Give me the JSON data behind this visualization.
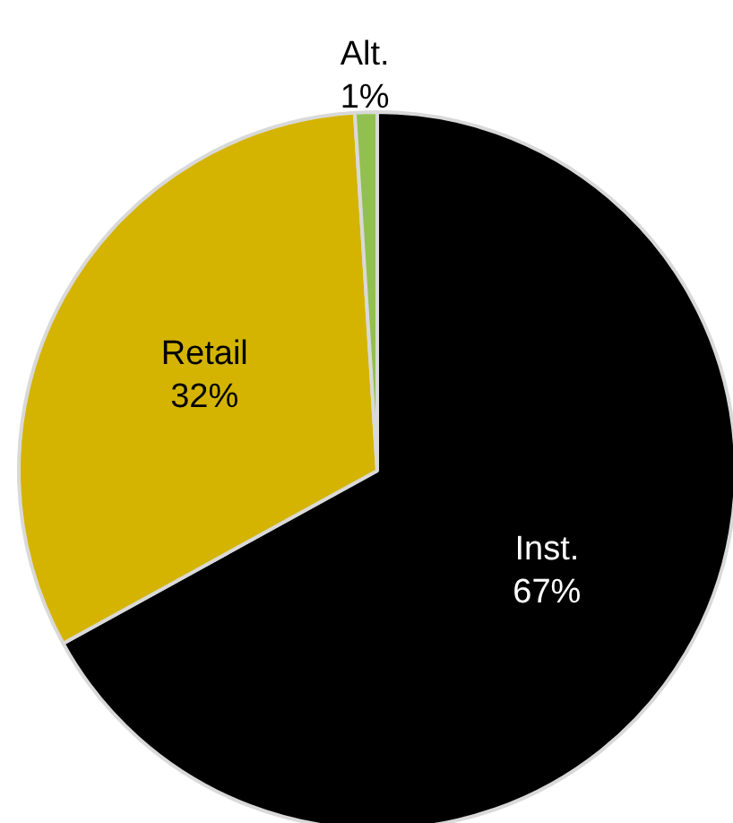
{
  "chart_data": {
    "type": "pie",
    "categories": [
      "Inst.",
      "Retail",
      "Alt."
    ],
    "values": [
      67,
      32,
      1
    ],
    "value_labels": [
      "67%",
      "32%",
      "1%"
    ],
    "colors": [
      "#000000",
      "#d4b400",
      "#92c050"
    ]
  }
}
